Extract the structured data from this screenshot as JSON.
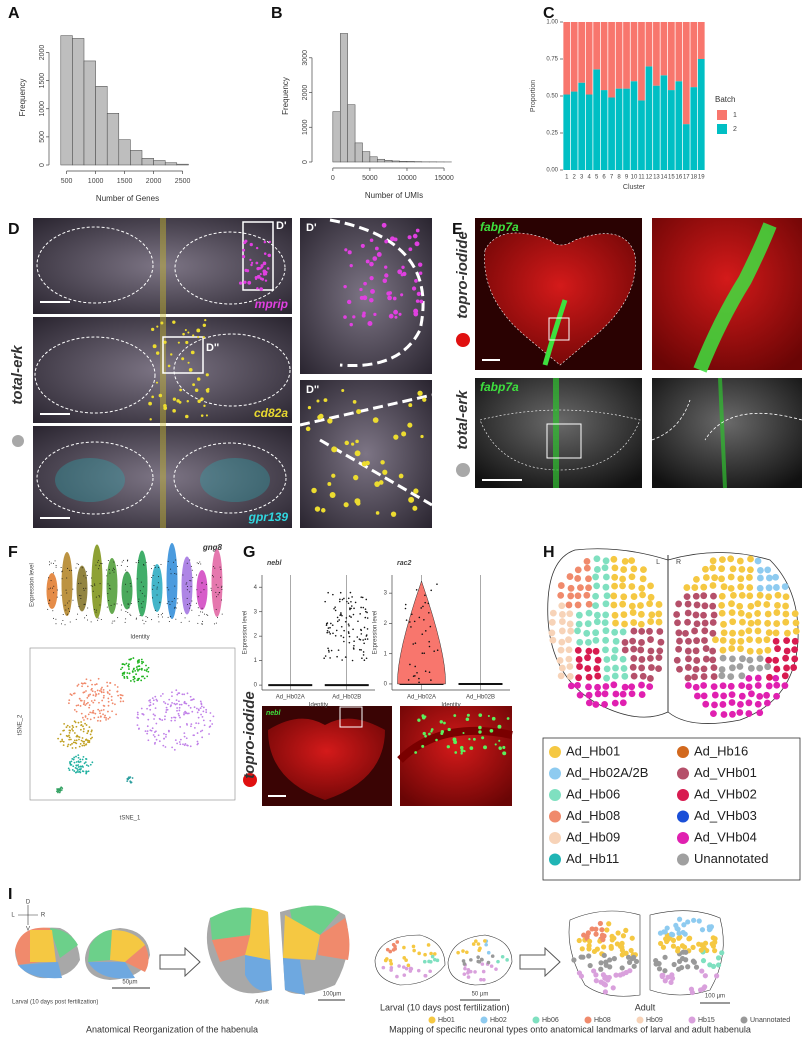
{
  "chart_data": [
    {
      "type": "histogram",
      "panel": "A",
      "xlabel": "Number of Genes",
      "ylabel": "Frequency",
      "bins": [
        400,
        600,
        800,
        1000,
        1200,
        1400,
        1600,
        1800,
        2000,
        2200,
        2400,
        2600
      ],
      "values": [
        2300,
        2250,
        1850,
        1400,
        920,
        450,
        260,
        120,
        80,
        40,
        15
      ],
      "xlim": [
        300,
        2800
      ],
      "ylim": [
        0,
        2400
      ],
      "xticks": [
        500,
        1000,
        1500,
        2000,
        2500
      ],
      "yticks": [
        0,
        500,
        1000,
        1500,
        2000
      ],
      "color": "#bebebe"
    },
    {
      "type": "histogram",
      "panel": "B",
      "xlabel": "Number of UMIs",
      "ylabel": "Frequency",
      "bins": [
        0,
        1000,
        2000,
        3000,
        4000,
        5000,
        6000,
        7000,
        8000,
        9000,
        10000,
        11000,
        12000,
        13000,
        14000,
        15000,
        16000
      ],
      "values": [
        1450,
        3700,
        1650,
        550,
        300,
        150,
        80,
        50,
        30,
        20,
        15,
        10,
        5,
        5,
        3,
        2
      ],
      "xlim": [
        -2000,
        18500
      ],
      "ylim": [
        0,
        3800
      ],
      "xticks": [
        0,
        5000,
        10000,
        15000
      ],
      "yticks": [
        0,
        1000,
        2000,
        3000
      ],
      "color": "#bebebe"
    },
    {
      "type": "stacked_bar",
      "panel": "C",
      "xlabel": "Cluster",
      "ylabel": "Proportion",
      "legend_title": "Batch",
      "categories": [
        "1",
        "2",
        "3",
        "4",
        "5",
        "6",
        "7",
        "8",
        "9",
        "10",
        "11",
        "12",
        "13",
        "14",
        "15",
        "16",
        "17",
        "18",
        "19"
      ],
      "series": [
        {
          "name": "1",
          "color": "#f8766d",
          "values": [
            0.49,
            0.47,
            0.41,
            0.49,
            0.32,
            0.46,
            0.51,
            0.45,
            0.45,
            0.4,
            0.53,
            0.3,
            0.43,
            0.36,
            0.46,
            0.4,
            0.69,
            0.44,
            0.25
          ]
        },
        {
          "name": "2",
          "color": "#00bfc4",
          "values": [
            0.51,
            0.53,
            0.59,
            0.51,
            0.68,
            0.54,
            0.49,
            0.55,
            0.55,
            0.6,
            0.47,
            0.7,
            0.57,
            0.64,
            0.54,
            0.6,
            0.31,
            0.56,
            0.75
          ]
        }
      ],
      "ylim": [
        0,
        1
      ],
      "yticks": [
        {
          "value": 0,
          "label": "0.00"
        },
        {
          "value": 0.25,
          "label": "0.25"
        },
        {
          "value": 0.5,
          "label": "0.50"
        },
        {
          "value": 0.75,
          "label": "0.75"
        },
        {
          "value": 1,
          "label": "1.00"
        }
      ]
    }
  ],
  "panel_d": {
    "letter": "D",
    "stain": "total-erk",
    "box_labels": [
      "D'",
      "D''"
    ],
    "inset_labels": [
      "D'",
      "D''"
    ],
    "markers": [
      "mprip",
      "cd82a",
      "gpr139"
    ]
  },
  "panel_e": {
    "letter": "E",
    "gene_top": "fabp7a",
    "gene_bottom": "fabp7a",
    "stain_top": "topro-iodide",
    "stain_bottom": "total-erk"
  },
  "panel_f": {
    "letter": "F",
    "gene": "gng8",
    "ylabel": "Expression level",
    "xlabel": "Identity",
    "tsne_y": "tSNE_2",
    "tsne_x": "tSNE_1"
  },
  "panel_g": {
    "letter": "G",
    "plots": [
      {
        "gene": "nebl",
        "ylabel": "Expression level",
        "xlabel": "Identity",
        "groups": [
          "Ad_Hb02A",
          "Ad_Hb02B"
        ],
        "ylim": [
          -0.2,
          4.5
        ],
        "yticks": [
          0,
          1,
          2,
          3,
          4
        ]
      },
      {
        "gene": "rac2",
        "ylabel": "Expression level",
        "xlabel": "Identity",
        "groups": [
          "Ad_Hb02A",
          "Ad_Hb02B"
        ],
        "ylim": [
          -0.2,
          3.6
        ],
        "yticks": [
          0,
          1,
          2,
          3
        ]
      }
    ],
    "image_gene": "nebl",
    "stain": "topro-iodide"
  },
  "panel_h": {
    "letter": "H",
    "left": "L",
    "right": "R",
    "legend": [
      {
        "name": "Ad_Hb01",
        "color": "#f5c842"
      },
      {
        "name": "Ad_Hb02A/2B",
        "color": "#8ecbf0"
      },
      {
        "name": "Ad_Hb06",
        "color": "#7fe0c0"
      },
      {
        "name": "Ad_Hb08",
        "color": "#f08a6c"
      },
      {
        "name": "Ad_Hb09",
        "color": "#f7d3b8"
      },
      {
        "name": "Ad_Hb11",
        "color": "#20b5b5"
      },
      {
        "name": "Ad_Hb16",
        "color": "#d2691e"
      },
      {
        "name": "Ad_VHb01",
        "color": "#b5506a"
      },
      {
        "name": "Ad_VHb02",
        "color": "#d81b50"
      },
      {
        "name": "Ad_VHb03",
        "color": "#1a4fd8"
      },
      {
        "name": "Ad_VHb04",
        "color": "#e020b0"
      },
      {
        "name": "Unannotated",
        "color": "#a0a0a0"
      }
    ]
  },
  "panel_i": {
    "letter": "I",
    "axes": [
      "D",
      "V",
      "L",
      "R"
    ],
    "larval_left": "Larval (10 days post fertilization)",
    "adult_left": "Adult",
    "scale_larval_left": "50µm",
    "scale_adult_left": "100µm",
    "caption_left": "Anatomical Reorganization of the habenula",
    "larval_right": "Larval (10 days post fertilization)",
    "adult_right": "Adult",
    "scale_larval_right": "50 µm",
    "scale_adult_right": "100 µm",
    "caption_right": "Mapping of specific neuronal types onto anatomical landmarks of larval and adult habenula",
    "legend": [
      {
        "name": "Hb01",
        "color": "#f5c842"
      },
      {
        "name": "Hb02",
        "color": "#8ecbf0"
      },
      {
        "name": "Hb06",
        "color": "#7fe0c0"
      },
      {
        "name": "Hb08",
        "color": "#f08a6c"
      },
      {
        "name": "Hb09",
        "color": "#f7d3b8"
      },
      {
        "name": "Hb15",
        "color": "#d9a0dc"
      },
      {
        "name": "Unannotated",
        "color": "#999999"
      }
    ]
  }
}
